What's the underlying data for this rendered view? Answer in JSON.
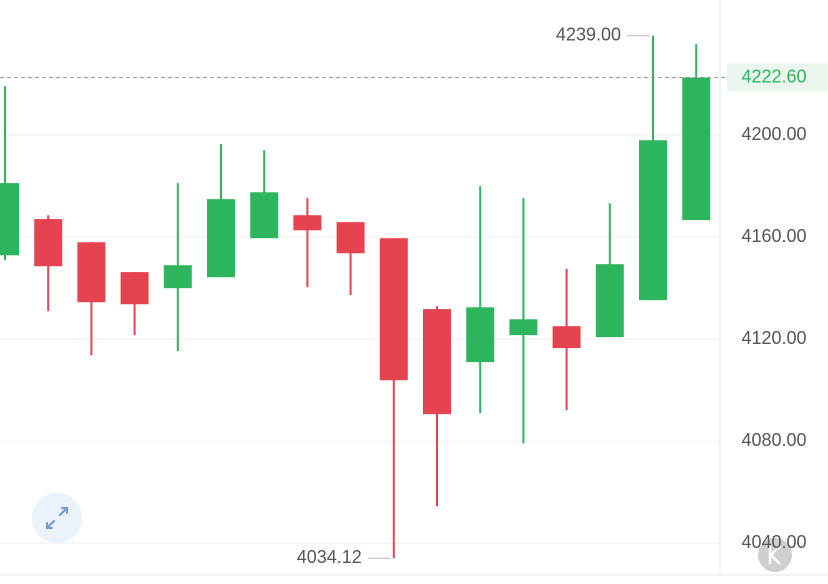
{
  "chart_data": {
    "type": "candlestick",
    "series": [
      {
        "up_color": "#2db55d",
        "down_color": "#e5434f",
        "open": [
          4152.9,
          4167.1,
          4158.0,
          4146.3,
          4140.0,
          4144.3,
          4159.6,
          4168.6,
          4165.9,
          4159.6,
          4131.8,
          4111.0,
          4121.6,
          4125.1,
          4120.8,
          4135.3,
          4166.7
        ],
        "high": [
          4219.2,
          4168.6,
          4158.0,
          4146.3,
          4181.2,
          4196.5,
          4194.1,
          4175.3,
          4165.9,
          4159.6,
          4132.9,
          4180.0,
          4175.3,
          4147.5,
          4173.3,
          4239.0,
          4235.7
        ],
        "low": [
          4151.0,
          4131.0,
          4113.7,
          4121.6,
          4115.3,
          4144.3,
          4159.6,
          4140.4,
          4137.3,
          4034.12,
          4054.5,
          4091.0,
          4079.2,
          4092.2,
          4120.8,
          4135.3,
          4166.7
        ],
        "close": [
          4181.2,
          4148.6,
          4134.5,
          4133.7,
          4149.0,
          4174.9,
          4177.6,
          4162.7,
          4153.7,
          4103.9,
          4090.6,
          4132.5,
          4127.8,
          4116.5,
          4149.4,
          4198.0,
          4222.6
        ]
      }
    ],
    "ylim": [
      4024,
      4253
    ],
    "yticks": [
      {
        "value": 4040,
        "label": "4040.00"
      },
      {
        "value": 4080,
        "label": "4080.00"
      },
      {
        "value": 4120,
        "label": "4120.00"
      },
      {
        "value": 4160,
        "label": "4160.00"
      },
      {
        "value": 4200,
        "label": "4200.00"
      }
    ],
    "grid": true,
    "annotations": [
      {
        "value": 4239,
        "label": "4239.00",
        "candle": 15,
        "kind": "high"
      },
      {
        "value": 4034.12,
        "label": "4034.12",
        "candle": 9,
        "kind": "low"
      }
    ],
    "last_price": {
      "value": 4222.6,
      "label": "4222.60",
      "color": "#2db55d"
    }
  }
}
